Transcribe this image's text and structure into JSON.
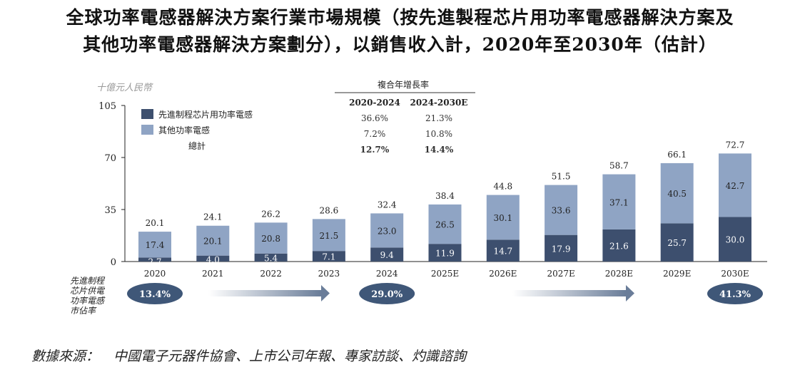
{
  "title_line1": "全球功率電感器解決方案行業市場規模（按先進製程芯片用功率電感器解決方案及",
  "title_line2": "其他功率電感器解決方案劃分），以銷售收入計，2020年至2030年（估計）",
  "source_label": "數據來源：",
  "source_text": "中國電子元器件協會、上市公司年報、專家訪談、灼識諮詢",
  "chart_data": {
    "type": "bar",
    "stacked": true,
    "ylabel": "十億元人民幣",
    "ylim": [
      0,
      105
    ],
    "yticks": [
      0,
      35,
      70,
      105
    ],
    "categories": [
      "2020",
      "2021",
      "2022",
      "2023",
      "2024",
      "2025E",
      "2026E",
      "2027E",
      "2028E",
      "2029E",
      "2030E"
    ],
    "series": [
      {
        "name": "先進制程芯片用功率電感",
        "color": "#3d4f6e",
        "values": [
          2.7,
          4.0,
          5.4,
          7.1,
          9.4,
          11.9,
          14.7,
          17.9,
          21.6,
          25.7,
          30.0
        ]
      },
      {
        "name": "其他功率電感",
        "color": "#8fa4c4",
        "values": [
          17.4,
          20.1,
          20.8,
          21.5,
          23.0,
          26.5,
          30.1,
          33.6,
          37.1,
          40.5,
          42.7
        ]
      }
    ],
    "totals": [
      20.1,
      24.1,
      26.2,
      28.6,
      32.4,
      38.4,
      44.8,
      51.5,
      58.7,
      66.1,
      72.7
    ],
    "legend_total_label": "總計",
    "cagr_table": {
      "title": "複合年增長率",
      "headers": [
        "2020-2024",
        "2024-2030E"
      ],
      "rows": [
        [
          "36.6%",
          "21.3%"
        ],
        [
          "7.2%",
          "10.8%"
        ],
        [
          "12.7%",
          "14.4%"
        ]
      ]
    },
    "share": {
      "label": [
        "先進制程",
        "芯片供電",
        "功率電感",
        "市佔率"
      ],
      "points": [
        {
          "category": "2020",
          "value": "13.4%"
        },
        {
          "category": "2024",
          "value": "29.0%"
        },
        {
          "category": "2030E",
          "value": "41.3%"
        }
      ]
    }
  }
}
